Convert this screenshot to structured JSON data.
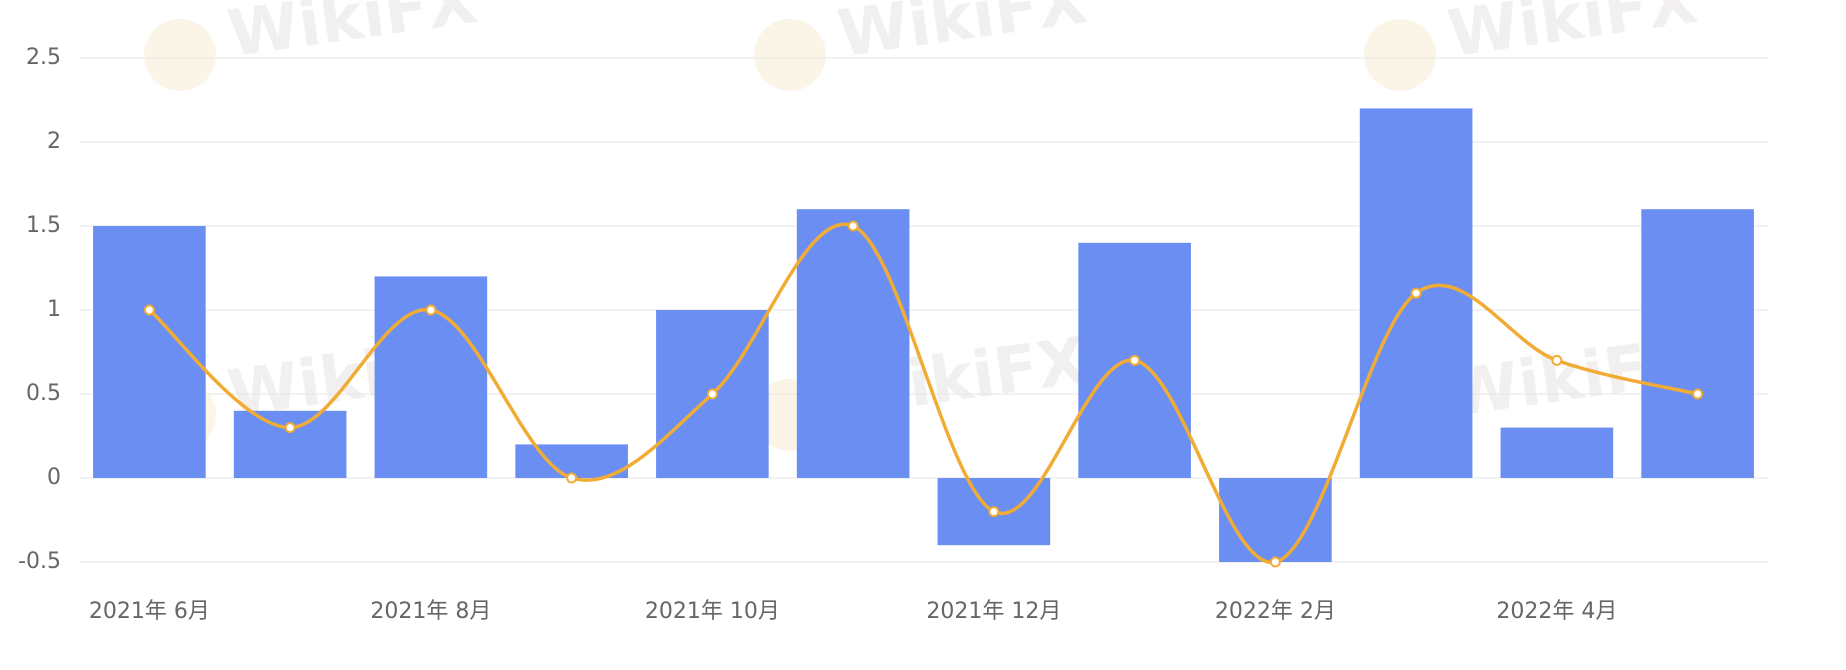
{
  "watermark": "WikiFX",
  "chart_data": {
    "type": "bar-line",
    "categories": [
      "2021年 6月",
      null,
      "2021年 8月",
      null,
      "2021年 10月",
      null,
      "2021年 12月",
      null,
      "2022年 2月",
      null,
      "2022年 4月",
      null
    ],
    "series": [
      {
        "type": "bar",
        "color": "#6b8ef2",
        "values": [
          1.5,
          0.4,
          1.2,
          0.2,
          1.0,
          1.6,
          -0.4,
          1.4,
          -0.5,
          2.2,
          0.3,
          1.6
        ]
      },
      {
        "type": "line",
        "color": "#f1ac35",
        "values": [
          1,
          0.3,
          1,
          0,
          0.5,
          1.5,
          -0.2,
          0.7,
          -0.5,
          1.1,
          0.7,
          0.5
        ]
      }
    ],
    "ylim": [
      -0.5,
      2.5
    ],
    "yticks": [
      -0.5,
      0,
      0.5,
      1,
      1.5,
      2,
      2.5
    ],
    "grid": true
  }
}
